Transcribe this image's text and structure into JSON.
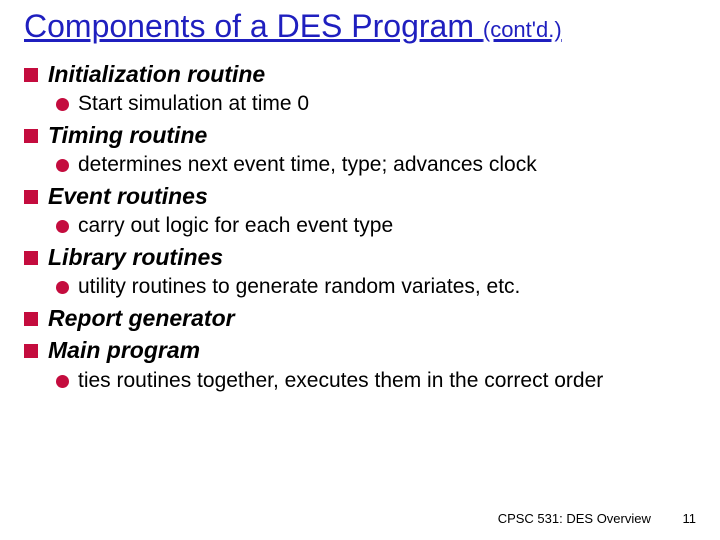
{
  "title": {
    "main": "Components of a DES Program ",
    "suffix": "(cont'd.)",
    "color": "#1f1fbf",
    "fontsize_main": 32,
    "fontsize_suffix": 22,
    "underline": true
  },
  "colors": {
    "square_bullet": "#c40c3e",
    "circle_bullet": "#c40c3e",
    "background": "#ffffff",
    "text": "#000000"
  },
  "typography": {
    "body_font": "Comic Sans MS",
    "footer_font": "Arial",
    "l1_fontsize": 23,
    "l2_fontsize": 21,
    "l1_italic": true,
    "l1_bold": true
  },
  "bullets_l1_shape": "square",
  "bullets_l2_shape": "circle",
  "items": [
    {
      "level": 1,
      "text": "Initialization routine"
    },
    {
      "level": 2,
      "text": "Start simulation at time 0"
    },
    {
      "level": 1,
      "text": "Timing routine"
    },
    {
      "level": 2,
      "text": "determines next event time, type; advances clock"
    },
    {
      "level": 1,
      "text": "Event routines"
    },
    {
      "level": 2,
      "text": "carry out logic for each event type"
    },
    {
      "level": 1,
      "text": "Library routines"
    },
    {
      "level": 2,
      "text": "utility routines to generate random variates, etc."
    },
    {
      "level": 1,
      "text": "Report generator"
    },
    {
      "level": 1,
      "text": "Main program"
    },
    {
      "level": 2,
      "text": "ties routines together, executes them in the correct order"
    }
  ],
  "footer": {
    "course": "CPSC 531: DES Overview",
    "page": "11",
    "fontsize": 13
  }
}
